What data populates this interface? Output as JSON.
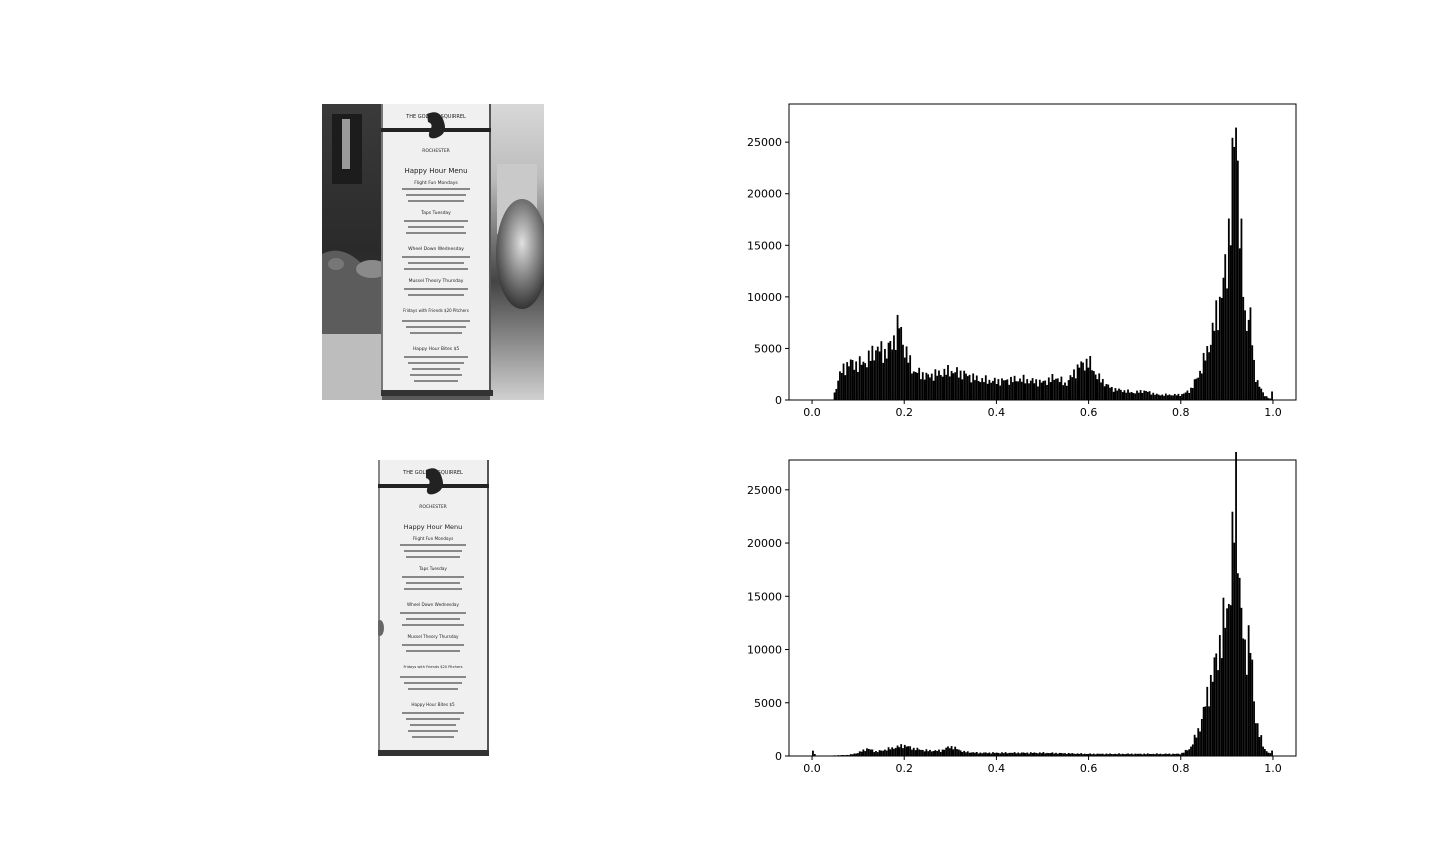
{
  "figure": {
    "photo_top": {
      "menu_logo_text": "THE GOLDEN SQUIRREL",
      "menu_logo_sub": "ROCHESTER",
      "menu_title": "Happy Hour Menu",
      "menu_lines": [
        "Flight Fun Mondays",
        "Taps Tuesday",
        "Wheel Down Wednesday",
        "Mussel Theory Thursday",
        "Fridays with Friends $20 Pitchers",
        "Happy Hour Bites $5"
      ]
    },
    "photo_bottom": {
      "menu_logo_text": "THE GOLDEN SQUIRREL",
      "menu_logo_sub": "ROCHESTER",
      "menu_title": "Happy Hour Menu",
      "menu_lines": [
        "Flight Fun Mondays",
        "Taps Tuesday",
        "Wheel Down Wednesday",
        "Mussel Theory Thursday",
        "Fridays with Friends $20 Pitchers",
        "Happy Hour Bites $5"
      ]
    }
  },
  "chart_data": [
    {
      "type": "bar",
      "xlim": [
        -0.05,
        1.05
      ],
      "ylim": [
        0,
        28700
      ],
      "xticks": [
        0.0,
        0.2,
        0.4,
        0.6,
        0.8,
        1.0
      ],
      "xtick_labels": [
        "0.0",
        "0.2",
        "0.4",
        "0.6",
        "0.8",
        "1.0"
      ],
      "yticks": [
        0,
        5000,
        10000,
        15000,
        20000,
        25000
      ],
      "ytick_labels": [
        "0",
        "5000",
        "10000",
        "15000",
        "20000",
        "25000"
      ],
      "bar_color": "#000000",
      "series": [
        {
          "x": [
            0.045,
            0.06,
            0.08,
            0.1,
            0.12,
            0.14,
            0.16,
            0.18,
            0.19,
            0.2,
            0.22,
            0.25,
            0.28,
            0.3,
            0.33,
            0.36,
            0.4,
            0.45,
            0.5,
            0.53,
            0.55,
            0.58,
            0.6,
            0.62,
            0.65,
            0.7,
            0.72,
            0.75,
            0.8,
            0.82,
            0.84,
            0.86,
            0.88,
            0.9,
            0.91,
            0.92,
            0.93,
            0.94,
            0.95,
            0.96,
            0.98,
            0.995,
            1.0
          ],
          "y": [
            0,
            2500,
            3600,
            3400,
            3800,
            5000,
            4500,
            6000,
            7400,
            5000,
            2800,
            2300,
            2600,
            2800,
            2500,
            2000,
            1800,
            2000,
            1700,
            2200,
            1500,
            3300,
            3700,
            2200,
            1100,
            700,
            900,
            500,
            500,
            900,
            2500,
            5000,
            8500,
            13000,
            20000,
            27000,
            16000,
            7000,
            9000,
            2500,
            500,
            100,
            1300
          ]
        }
      ]
    },
    {
      "type": "bar",
      "xlim": [
        -0.05,
        1.05
      ],
      "ylim": [
        0,
        27800
      ],
      "xticks": [
        0.0,
        0.2,
        0.4,
        0.6,
        0.8,
        1.0
      ],
      "xtick_labels": [
        "0.0",
        "0.2",
        "0.4",
        "0.6",
        "0.8",
        "1.0"
      ],
      "yticks": [
        0,
        5000,
        10000,
        15000,
        20000,
        25000
      ],
      "ytick_labels": [
        "0",
        "5000",
        "10000",
        "15000",
        "20000",
        "25000"
      ],
      "bar_color": "#000000",
      "series": [
        {
          "x": [
            0.0,
            0.01,
            0.08,
            0.1,
            0.12,
            0.14,
            0.16,
            0.2,
            0.22,
            0.25,
            0.28,
            0.3,
            0.33,
            0.36,
            0.4,
            0.5,
            0.6,
            0.7,
            0.8,
            0.82,
            0.84,
            0.86,
            0.88,
            0.9,
            0.91,
            0.92,
            0.93,
            0.94,
            0.95,
            0.96,
            0.98,
            0.995,
            1.0
          ],
          "y": [
            500,
            0,
            100,
            300,
            700,
            400,
            600,
            1000,
            700,
            500,
            500,
            900,
            400,
            300,
            300,
            300,
            200,
            200,
            200,
            700,
            2500,
            6000,
            9500,
            13500,
            17000,
            26000,
            14000,
            9000,
            12000,
            4000,
            700,
            200,
            800
          ]
        }
      ]
    }
  ]
}
